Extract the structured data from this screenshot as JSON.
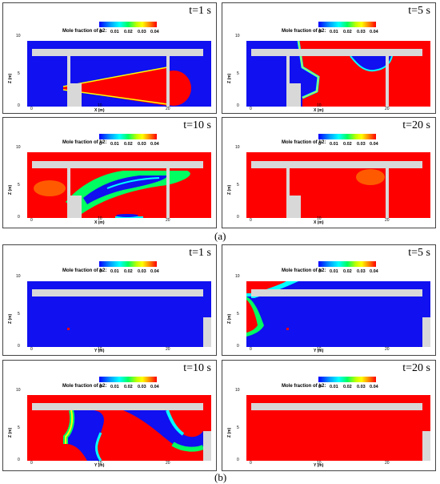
{
  "colorbar": {
    "title": "Mole fraction of h2:",
    "ticks": [
      "0",
      "0.01",
      "0.02",
      "0.03",
      "0.04"
    ]
  },
  "axes": {
    "z_label": "Z (m)",
    "x_label": "X (m)",
    "y_label": "Y (m)",
    "z_ticks": [
      "10",
      "5",
      "0"
    ],
    "h_ticks": [
      "0",
      "10",
      "20"
    ]
  },
  "panels_a": [
    {
      "time": "t=1 s"
    },
    {
      "time": "t=5 s"
    },
    {
      "time": "t=10 s"
    },
    {
      "time": "t=20 s"
    }
  ],
  "panels_b": [
    {
      "time": "t=1 s"
    },
    {
      "time": "t=5 s"
    },
    {
      "time": "t=10 s"
    },
    {
      "time": "t=20 s"
    }
  ],
  "captions": {
    "a": "(a)",
    "b": "(b)"
  },
  "colors": {
    "low": "#1010f0",
    "high": "#ff0000",
    "structure": "#d8d8d8"
  }
}
